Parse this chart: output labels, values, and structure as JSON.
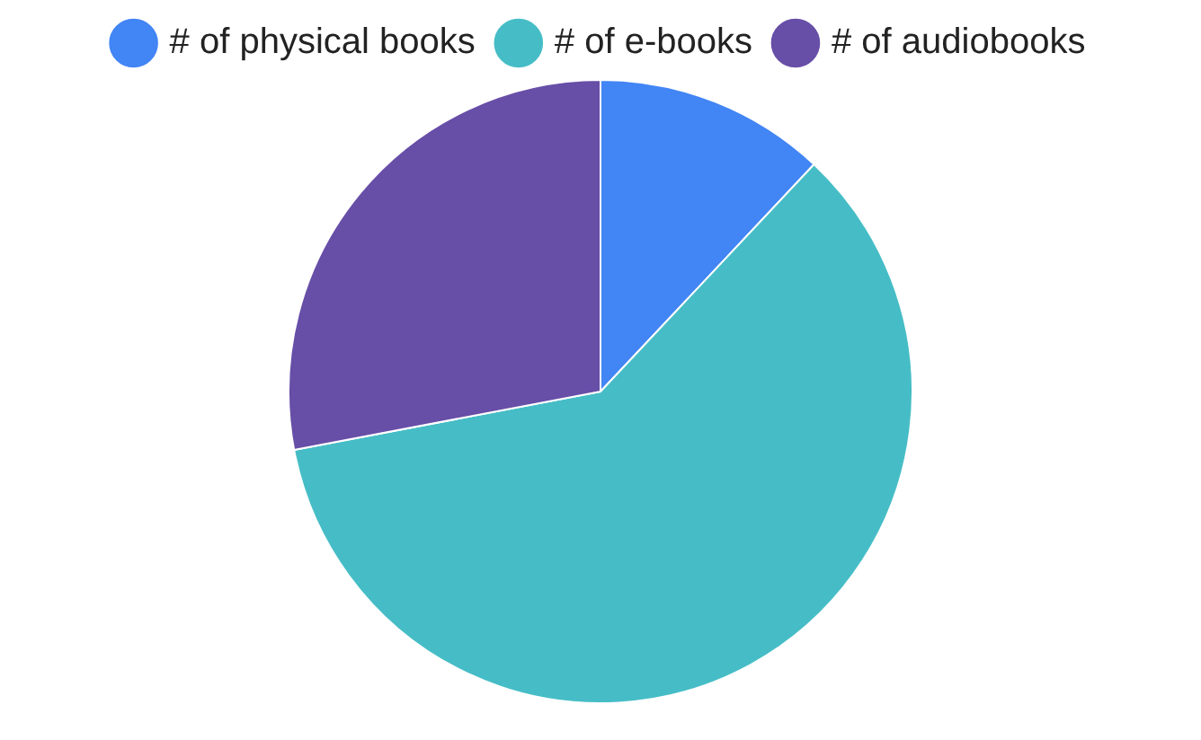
{
  "chart_data": {
    "type": "pie",
    "categories": [
      "# of physical books",
      "# of e-books",
      "# of audiobooks"
    ],
    "values": [
      12,
      60,
      28
    ],
    "colors": [
      "#4285f4",
      "#46bdc6",
      "#674ea7"
    ],
    "legend": "top"
  }
}
